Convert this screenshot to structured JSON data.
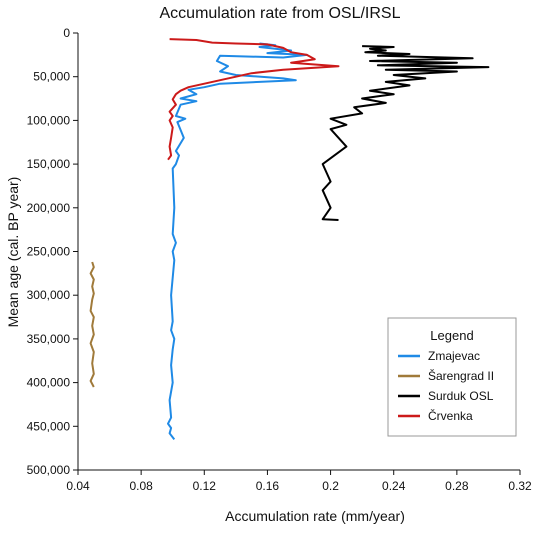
{
  "chart_data": {
    "type": "line",
    "title": "Accumulation rate from OSL/IRSL",
    "xlabel": "Accumulation rate (mm/year)",
    "ylabel": "Mean age (cal. BP year)",
    "xlim": [
      0.04,
      0.32
    ],
    "ylim": [
      0,
      500000
    ],
    "y_reversed": true,
    "x_ticks": [
      0.04,
      0.08,
      0.12,
      0.16,
      0.2,
      0.24,
      0.28,
      0.32
    ],
    "x_tick_labels": [
      "0.04",
      "0.08",
      "0.12",
      "0.16",
      "0.2",
      "0.24",
      "0.28",
      "0.32"
    ],
    "y_ticks": [
      0,
      50000,
      100000,
      150000,
      200000,
      250000,
      300000,
      350000,
      400000,
      450000,
      500000
    ],
    "y_tick_labels": [
      "0",
      "50,000",
      "100,000",
      "150,000",
      "200,000",
      "250,000",
      "300,000",
      "350,000",
      "400,000",
      "450,000",
      "500,000"
    ],
    "grid": false,
    "legend": {
      "title": "Legend",
      "placement": "right"
    },
    "series": [
      {
        "name": "Zmajevac",
        "color": "#1f8ae6",
        "points": [
          [
            0.155,
            12000
          ],
          [
            0.165,
            14000
          ],
          [
            0.155,
            16000
          ],
          [
            0.175,
            20000
          ],
          [
            0.16,
            23000
          ],
          [
            0.185,
            25000
          ],
          [
            0.17,
            28000
          ],
          [
            0.13,
            26000
          ],
          [
            0.128,
            32000
          ],
          [
            0.135,
            38000
          ],
          [
            0.13,
            44000
          ],
          [
            0.14,
            48000
          ],
          [
            0.17,
            52000
          ],
          [
            0.178,
            54000
          ],
          [
            0.13,
            58000
          ],
          [
            0.12,
            62000
          ],
          [
            0.11,
            65000
          ],
          [
            0.115,
            70000
          ],
          [
            0.105,
            75000
          ],
          [
            0.115,
            78000
          ],
          [
            0.105,
            82000
          ],
          [
            0.102,
            95000
          ],
          [
            0.108,
            98000
          ],
          [
            0.103,
            102000
          ],
          [
            0.107,
            120000
          ],
          [
            0.102,
            135000
          ],
          [
            0.104,
            140000
          ],
          [
            0.102,
            150000
          ],
          [
            0.1,
            155000
          ],
          [
            0.101,
            200000
          ],
          [
            0.1,
            230000
          ],
          [
            0.102,
            240000
          ],
          [
            0.1,
            250000
          ],
          [
            0.101,
            260000
          ],
          [
            0.099,
            300000
          ],
          [
            0.1,
            330000
          ],
          [
            0.099,
            340000
          ],
          [
            0.101,
            350000
          ],
          [
            0.1,
            362000
          ],
          [
            0.099,
            380000
          ],
          [
            0.1,
            400000
          ],
          [
            0.098,
            420000
          ],
          [
            0.099,
            440000
          ],
          [
            0.097,
            447000
          ],
          [
            0.099,
            452000
          ],
          [
            0.098,
            458000
          ],
          [
            0.101,
            465000
          ]
        ]
      },
      {
        "name": "Šarengrad II",
        "color": "#a07a3a",
        "points": [
          [
            0.049,
            262000
          ],
          [
            0.05,
            268000
          ],
          [
            0.048,
            275000
          ],
          [
            0.05,
            282000
          ],
          [
            0.049,
            290000
          ],
          [
            0.05,
            298000
          ],
          [
            0.049,
            305000
          ],
          [
            0.048,
            318000
          ],
          [
            0.05,
            325000
          ],
          [
            0.049,
            335000
          ],
          [
            0.05,
            345000
          ],
          [
            0.048,
            355000
          ],
          [
            0.05,
            365000
          ],
          [
            0.049,
            378000
          ],
          [
            0.05,
            390000
          ],
          [
            0.048,
            398000
          ],
          [
            0.05,
            405000
          ]
        ]
      },
      {
        "name": "Surduk OSL",
        "color": "#000000",
        "points": [
          [
            0.22,
            15000
          ],
          [
            0.24,
            16000
          ],
          [
            0.225,
            18000
          ],
          [
            0.235,
            20000
          ],
          [
            0.222,
            22000
          ],
          [
            0.25,
            24000
          ],
          [
            0.23,
            26000
          ],
          [
            0.29,
            29000
          ],
          [
            0.225,
            32000
          ],
          [
            0.28,
            34000
          ],
          [
            0.23,
            37000
          ],
          [
            0.3,
            39000
          ],
          [
            0.235,
            42000
          ],
          [
            0.28,
            44000
          ],
          [
            0.24,
            48000
          ],
          [
            0.26,
            52000
          ],
          [
            0.235,
            56000
          ],
          [
            0.25,
            60000
          ],
          [
            0.225,
            66000
          ],
          [
            0.24,
            70000
          ],
          [
            0.22,
            75000
          ],
          [
            0.235,
            80000
          ],
          [
            0.215,
            85000
          ],
          [
            0.22,
            92000
          ],
          [
            0.2,
            98000
          ],
          [
            0.21,
            105000
          ],
          [
            0.2,
            110000
          ],
          [
            0.21,
            130000
          ],
          [
            0.195,
            150000
          ],
          [
            0.2,
            170000
          ],
          [
            0.195,
            180000
          ],
          [
            0.2,
            200000
          ],
          [
            0.195,
            213000
          ],
          [
            0.205,
            214000
          ]
        ]
      },
      {
        "name": "Črvenka",
        "color": "#cc1a1a",
        "points": [
          [
            0.098,
            7000
          ],
          [
            0.115,
            8000
          ],
          [
            0.125,
            11000
          ],
          [
            0.14,
            12000
          ],
          [
            0.16,
            13000
          ],
          [
            0.17,
            17000
          ],
          [
            0.175,
            22000
          ],
          [
            0.185,
            25000
          ],
          [
            0.19,
            30000
          ],
          [
            0.175,
            34000
          ],
          [
            0.205,
            38000
          ],
          [
            0.17,
            42000
          ],
          [
            0.15,
            46000
          ],
          [
            0.14,
            50000
          ],
          [
            0.13,
            54000
          ],
          [
            0.12,
            58000
          ],
          [
            0.11,
            62000
          ],
          [
            0.105,
            66000
          ],
          [
            0.102,
            70000
          ],
          [
            0.1,
            76000
          ],
          [
            0.102,
            82000
          ],
          [
            0.098,
            90000
          ],
          [
            0.1,
            95000
          ],
          [
            0.098,
            100000
          ],
          [
            0.1,
            108000
          ],
          [
            0.099,
            120000
          ],
          [
            0.098,
            130000
          ],
          [
            0.099,
            140000
          ],
          [
            0.097,
            145000
          ]
        ]
      }
    ]
  }
}
